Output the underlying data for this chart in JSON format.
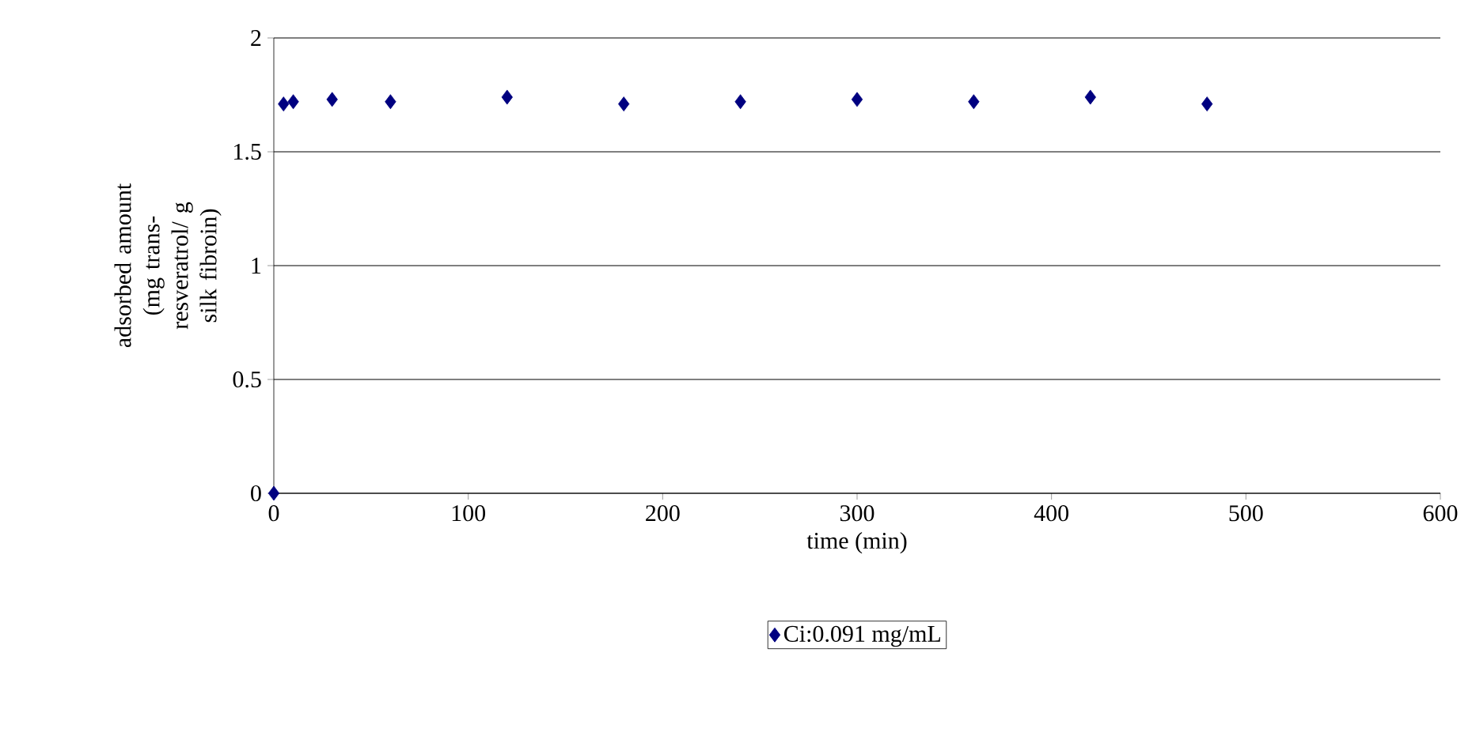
{
  "chart_data": {
    "type": "scatter",
    "xlabel": "time (min)",
    "ylabel": "adsorbed amount (mg trans-resveratrol/ g silk fibroin)",
    "x": [
      0,
      5,
      10,
      30,
      60,
      120,
      180,
      240,
      300,
      360,
      420,
      480
    ],
    "series": [
      {
        "name": "Ci:0.091 mg/mL",
        "color": "#000080",
        "values": [
          0,
          1.71,
          1.72,
          1.73,
          1.72,
          1.74,
          1.71,
          1.72,
          1.73,
          1.72,
          1.74,
          1.71
        ]
      }
    ],
    "xlim": [
      0,
      600
    ],
    "xticks": [
      0,
      100,
      200,
      300,
      400,
      500,
      600
    ],
    "ylim": [
      0,
      2
    ],
    "yticks": [
      0,
      0.5,
      1,
      1.5,
      2
    ],
    "grid": "y",
    "legend": "bottom",
    "marker": "diamond"
  }
}
